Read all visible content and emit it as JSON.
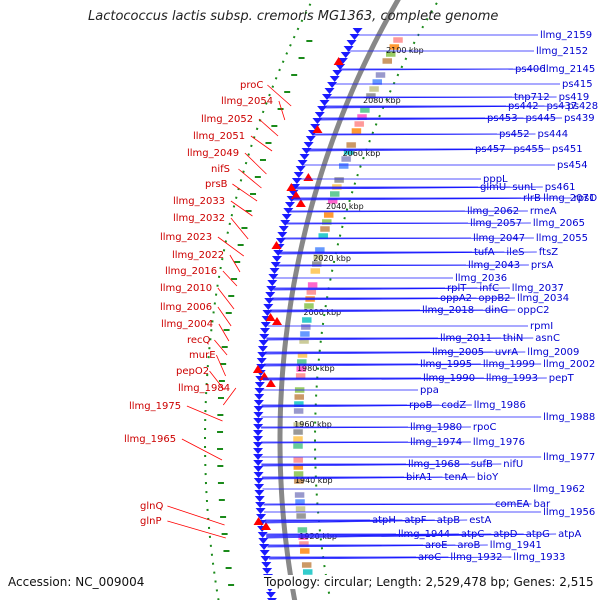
{
  "title": "Lactococcus lactis subsp. cremoris MG1363, complete genome",
  "accession": "Accession: NC_009004",
  "summary": "Topology: circular; Length: 2,529,478 bp; Genes: 2,515",
  "ticks": [
    "2100 kbp",
    "2080 kbp",
    "2060 kbp",
    "2040 kbp",
    "2020 kbp",
    "2000 kbp",
    "1980 kbp",
    "1960 kbp",
    "1940 kbp",
    "1920 kbp"
  ],
  "blue_labels": [
    "llmg_2159",
    "llmg_2152",
    "ps406",
    "llmg_2145",
    "ps415",
    "tnp712",
    "ps419",
    "ps442",
    "ps437",
    "ps428",
    "ps453",
    "ps445",
    "ps439",
    "ps452",
    "ps444",
    "ps457",
    "ps455",
    "ps451",
    "ps454",
    "pppL",
    "glmU",
    "sunL",
    "ps461",
    "rlrB",
    "llmg_2071",
    "rpsO",
    "llmg_2062",
    "rmeA",
    "llmg_2057",
    "llmg_2065",
    "llmg_2047",
    "llmg_2055",
    "tufA",
    "ileS",
    "ftsZ",
    "llmg_2043",
    "prsA",
    "llmg_2036",
    "rplT",
    "infC",
    "llmg_2037",
    "oppA2",
    "oppB2",
    "llmg_2034",
    "llmg_2018",
    "dinG",
    "oppC2",
    "rpmI",
    "llmg_2011",
    "thiN",
    "asnC",
    "llmg_2005",
    "uvrA",
    "llmg_2009",
    "llmg_1995",
    "llmg_1999",
    "llmg_2002",
    "llmg_1990",
    "llmg_1993",
    "pepT",
    "ppa",
    "rpoB",
    "codZ",
    "llmg_1986",
    "llmg_1988",
    "llmg_1980",
    "rpoC",
    "llmg_1974",
    "llmg_1976",
    "llmg_1977",
    "llmg_1968",
    "sufB",
    "nifU",
    "birA1",
    "tenA",
    "bioY",
    "llmg_1962",
    "comEA",
    "bar",
    "llmg_1956",
    "atpH",
    "atpF",
    "atpB",
    "estA",
    "llmg_1944",
    "atpC",
    "atpD",
    "atpG",
    "atpA",
    "aroE",
    "aroB",
    "llmg_1941",
    "aroC",
    "llmg_1932",
    "llmg_1933"
  ],
  "red_labels": [
    "proC",
    "llmg_2054",
    "llmg_2052",
    "llmg_2051",
    "llmg_2049",
    "nifS",
    "prsB",
    "llmg_2033",
    "llmg_2032",
    "llmg_2023",
    "llmg_2022",
    "llmg_2016",
    "llmg_2010",
    "llmg_2006",
    "llmg_2004",
    "recQ",
    "murE",
    "pepO2",
    "llmg_1984",
    "llmg_1975",
    "llmg_1965",
    "glnQ",
    "glnP"
  ],
  "colors": {
    "forward": "#1a1aff",
    "reverse": "#ff0000",
    "backbone": "#888888",
    "gc": "#1a8a1a",
    "title": "#222222"
  }
}
